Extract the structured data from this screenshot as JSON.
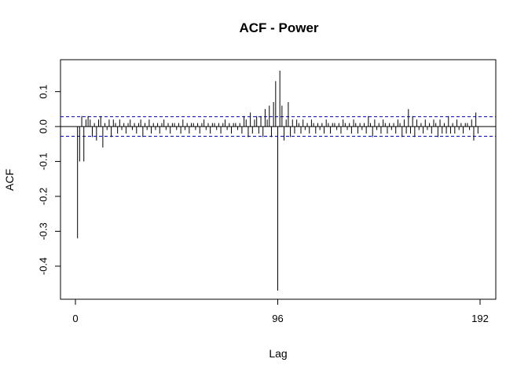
{
  "chart_data": {
    "type": "bar",
    "subtype": "acf-stem",
    "title": "ACF - Power",
    "xlabel": "Lag",
    "ylabel": "ACF",
    "xlim": [
      0,
      192
    ],
    "ylim": [
      -0.47,
      0.16
    ],
    "x_ticks": [
      0,
      96,
      192
    ],
    "x_tick_labels": [
      "0",
      "96",
      "192"
    ],
    "y_ticks": [
      -0.4,
      -0.3,
      -0.2,
      -0.1,
      0.0,
      0.1
    ],
    "y_tick_labels": [
      "-0.4",
      "-0.3",
      "-0.2",
      "-0.1",
      "0.0",
      "0.1"
    ],
    "confidence_bound": 0.028,
    "series": [
      {
        "name": "ACF",
        "lag_start": 1,
        "values": [
          -0.32,
          -0.1,
          0.03,
          -0.1,
          0.02,
          0.03,
          0.02,
          -0.03,
          0.01,
          -0.04,
          0.02,
          0.03,
          -0.06,
          0.01,
          -0.01,
          0.02,
          -0.03,
          0.02,
          0.01,
          -0.02,
          0.02,
          -0.01,
          0.01,
          -0.02,
          0.01,
          0.02,
          -0.01,
          0.01,
          -0.02,
          0.01,
          0.02,
          -0.03,
          0.01,
          -0.01,
          0.02,
          -0.02,
          0.01,
          -0.01,
          0.01,
          -0.02,
          0.01,
          0.02,
          -0.01,
          0.01,
          -0.02,
          0.01,
          0.01,
          -0.01,
          0.01,
          -0.02,
          0.02,
          -0.01,
          0.01,
          -0.02,
          0.01,
          0.01,
          -0.01,
          0.01,
          -0.02,
          0.01,
          0.02,
          -0.01,
          0.01,
          -0.02,
          0.01,
          0.01,
          -0.01,
          0.01,
          -0.02,
          0.01,
          0.02,
          -0.01,
          0.01,
          -0.02,
          0.01,
          0.01,
          -0.01,
          0.01,
          -0.02,
          0.03,
          0.02,
          -0.03,
          0.04,
          -0.02,
          0.02,
          0.03,
          -0.02,
          0.03,
          -0.03,
          0.05,
          0.02,
          0.06,
          -0.03,
          0.07,
          0.13,
          -0.47,
          0.16,
          0.06,
          -0.04,
          0.02,
          0.07,
          -0.03,
          0.02,
          -0.02,
          0.02,
          0.01,
          -0.02,
          0.02,
          -0.01,
          0.01,
          -0.02,
          0.02,
          0.01,
          -0.02,
          0.01,
          -0.01,
          0.01,
          -0.02,
          0.02,
          0.01,
          -0.02,
          0.01,
          0.01,
          -0.01,
          0.01,
          -0.02,
          0.02,
          0.01,
          -0.01,
          0.01,
          -0.02,
          0.02,
          0.01,
          -0.02,
          0.01,
          -0.01,
          0.01,
          -0.02,
          0.03,
          0.01,
          -0.03,
          0.02,
          -0.01,
          0.01,
          -0.02,
          0.02,
          0.01,
          -0.02,
          0.01,
          -0.01,
          0.01,
          -0.02,
          0.02,
          0.01,
          -0.03,
          0.02,
          -0.02,
          0.05,
          -0.02,
          0.03,
          -0.03,
          0.02,
          -0.01,
          0.01,
          -0.02,
          0.02,
          -0.01,
          0.01,
          -0.02,
          0.02,
          0.01,
          -0.03,
          0.02,
          -0.02,
          0.01,
          -0.02,
          0.03,
          -0.02,
          0.01,
          -0.02,
          0.02,
          -0.01,
          0.01,
          -0.02,
          0.01,
          0.01,
          -0.01,
          0.02,
          -0.04,
          0.04,
          -0.02
        ]
      }
    ],
    "colors": {
      "stem": "#000000",
      "bound": "#0000cc",
      "zero": "#000000",
      "frame": "#000000"
    }
  }
}
